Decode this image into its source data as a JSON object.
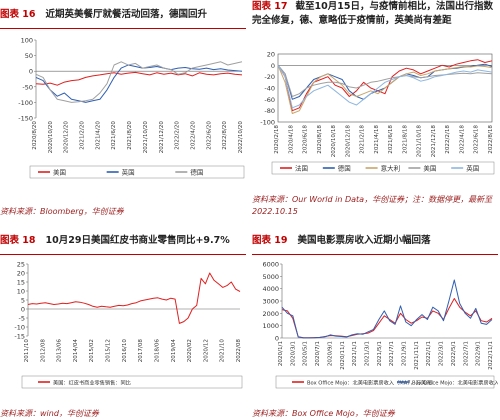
{
  "colors": {
    "accent": "#c00000",
    "source": "#9b1d1d"
  },
  "panels": [
    {
      "id": "p1",
      "num": "图表 16",
      "title": "近期英美餐厅就餐活动回落，德国回升",
      "source": "资料来源：Bloomberg，华创证券"
    },
    {
      "id": "p2",
      "num": "图表 17",
      "title": "截至10月15日，与疫情前相比，法国出行指数完全修复，德、意略低于疫情前，英美尚有差距",
      "source": "资料来源：Our World in Data，华创证券；注：数据停更，最新至2022.10.15"
    },
    {
      "id": "p3",
      "num": "图表 18",
      "title": "10月29日美国红皮书商业零售同比+9.7%",
      "source": "资料来源：wind，华创证券"
    },
    {
      "id": "p4",
      "num": "图表 19",
      "title": "美国电影票房收入近期小幅回落",
      "source": "资料来源：Box Office Mojo，华创证券"
    }
  ],
  "chart_data": [
    {
      "type": "line",
      "ylim": [
        -100,
        100
      ],
      "yticks": [
        "100",
        "50",
        "0",
        "-50",
        "-100",
        "-150"
      ],
      "x_ticks": [
        "2020/8/20",
        "2020/10/20",
        "2020/12/20",
        "2021/2/20",
        "2021/4/20",
        "2021/6/20",
        "2021/8/20",
        "2021/10/20",
        "2021/12/20",
        "2022/2/20",
        "2022/4/20",
        "2022/6/20",
        "2022/8/20",
        "2022/10/20"
      ],
      "series": [
        {
          "name": "美国",
          "color": "#e02020",
          "values": [
            -40,
            -42,
            -38,
            -45,
            -35,
            -30,
            -28,
            -20,
            -15,
            -12,
            -8,
            -5,
            -10,
            -6,
            -4,
            -8,
            -12,
            -5,
            -10,
            -6,
            -12,
            -8,
            -15,
            -5,
            -10,
            -12,
            -8,
            -6,
            -10,
            -12
          ]
        },
        {
          "name": "英国",
          "color": "#2f5fb3",
          "values": [
            -20,
            -30,
            -60,
            -80,
            -70,
            -90,
            -95,
            -100,
            -95,
            -90,
            -60,
            -20,
            10,
            20,
            15,
            10,
            12,
            15,
            10,
            5,
            10,
            12,
            8,
            6,
            10,
            5,
            8,
            4,
            2,
            0
          ]
        },
        {
          "name": "德国",
          "color": "#a0a0a0",
          "values": [
            -10,
            -20,
            -60,
            -90,
            -95,
            -100,
            -98,
            -95,
            -90,
            -70,
            -40,
            20,
            30,
            20,
            25,
            10,
            15,
            20,
            10,
            5,
            -10,
            -5,
            10,
            15,
            20,
            25,
            30,
            20,
            25,
            30
          ]
        }
      ]
    },
    {
      "type": "line",
      "ylim": [
        -100,
        20
      ],
      "yticks": [
        "20",
        "0",
        "-20",
        "-40",
        "-60",
        "-80",
        "-100"
      ],
      "x_ticks": [
        "2020/2/18",
        "2020/4/18",
        "2020/6/18",
        "2020/8/18",
        "2020/10/18",
        "2020/12/18",
        "2021/2/18",
        "2021/4/18",
        "2021/6/18",
        "2021/8/18",
        "2021/10/18",
        "2021/12/18",
        "2022/2/18",
        "2022/4/18",
        "2022/6/18",
        "2022/8/18"
      ],
      "series": [
        {
          "name": "法国",
          "color": "#e02020",
          "values": [
            0,
            -20,
            -80,
            -75,
            -50,
            -30,
            -25,
            -20,
            -35,
            -40,
            -55,
            -45,
            -30,
            -40,
            -45,
            -50,
            -20,
            -10,
            -5,
            -8,
            -15,
            -10,
            -5,
            0,
            -3,
            2,
            5,
            8,
            10,
            5,
            8
          ]
        },
        {
          "name": "德国",
          "color": "#2f5fb3",
          "values": [
            0,
            -15,
            -60,
            -55,
            -40,
            -25,
            -20,
            -15,
            -20,
            -25,
            -45,
            -55,
            -60,
            -50,
            -45,
            -40,
            -30,
            -20,
            -15,
            -18,
            -22,
            -20,
            -10,
            -8,
            -6,
            -5,
            -3,
            -2,
            0,
            2,
            -2
          ]
        },
        {
          "name": "意大利",
          "color": "#c9a56a",
          "values": [
            0,
            -30,
            -85,
            -80,
            -55,
            -30,
            -20,
            -15,
            -25,
            -35,
            -50,
            -55,
            -50,
            -45,
            -50,
            -40,
            -30,
            -20,
            -15,
            -12,
            -18,
            -15,
            -10,
            -8,
            -6,
            -4,
            -2,
            -3,
            -1,
            -2,
            -4
          ]
        },
        {
          "name": "美国",
          "color": "#a0a0a0",
          "values": [
            0,
            -15,
            -55,
            -50,
            -40,
            -35,
            -32,
            -30,
            -30,
            -32,
            -38,
            -40,
            -35,
            -30,
            -28,
            -25,
            -22,
            -20,
            -18,
            -20,
            -22,
            -20,
            -18,
            -17,
            -16,
            -15,
            -14,
            -15,
            -13,
            -14,
            -15
          ]
        },
        {
          "name": "英国",
          "color": "#8fb6e0",
          "values": [
            0,
            -20,
            -75,
            -70,
            -55,
            -45,
            -40,
            -35,
            -45,
            -55,
            -65,
            -70,
            -60,
            -50,
            -40,
            -30,
            -25,
            -20,
            -18,
            -22,
            -28,
            -25,
            -20,
            -18,
            -15,
            -12,
            -10,
            -12,
            -8,
            -10,
            -12
          ]
        }
      ]
    },
    {
      "type": "line",
      "ylim": [
        -15,
        25
      ],
      "yticks": [
        "25",
        "20",
        "15",
        "10",
        "5",
        "0",
        "-5",
        "-10",
        "-15"
      ],
      "x_ticks": [
        "2011/10",
        "2012/08",
        "2013/06",
        "2014/04",
        "2015/02",
        "2015/12",
        "2016/10",
        "2017/08",
        "2018/06",
        "2019/04",
        "2020/02",
        "2020/12",
        "2021/10",
        "2022/08"
      ],
      "series": [
        {
          "name": "美国：红皮书商业零售销售：同比",
          "color": "#e02020",
          "values": [
            2.5,
            3,
            2.8,
            3.2,
            3.5,
            3,
            2.5,
            2.8,
            3.2,
            3,
            3.5,
            4,
            3.8,
            3.2,
            2.5,
            1.5,
            1,
            1.5,
            1.2,
            1,
            1.5,
            2,
            1.8,
            2.2,
            3,
            3.5,
            4.5,
            5,
            5.5,
            6,
            6.2,
            5.5,
            5,
            6,
            5.5,
            -8,
            -7,
            -5,
            0,
            2,
            17,
            14,
            20,
            16,
            14,
            12,
            13,
            15,
            11,
            9.7
          ]
        }
      ]
    },
    {
      "type": "line",
      "ylim": [
        0,
        6000
      ],
      "yticks": [
        "6000",
        "5000",
        "4000",
        "3000",
        "2000",
        "1000",
        "0"
      ],
      "x_ticks": [
        "2020/1/1",
        "2020/3/1",
        "2020/5/1",
        "2020/7/1",
        "2020/9/1",
        "2020/11/1",
        "2021/1/1",
        "2021/3/1",
        "2021/5/1",
        "2021/7/1",
        "2021/9/1",
        "2021/11/1",
        "2022/1/1",
        "2022/3/1",
        "2022/5/1",
        "2022/7/1",
        "2022/9/1",
        "2022/11/1"
      ],
      "series": [
        {
          "name": "Box Office Mojo：北美电影票房收入（MA7，万美元）",
          "color": "#e02020",
          "values": [
            2300,
            2200,
            1600,
            100,
            20,
            20,
            30,
            50,
            120,
            200,
            180,
            150,
            100,
            200,
            300,
            350,
            400,
            600,
            1200,
            1800,
            1500,
            1200,
            2000,
            1500,
            1200,
            1400,
            1700,
            1600,
            2200,
            2000,
            1500,
            2400,
            3200,
            2500,
            2100,
            1800,
            2200,
            1400,
            1300,
            1600
          ]
        },
        {
          "name": "Box Office Mojo：北美电影票房收入",
          "color": "#2f5fb3",
          "values": [
            2500,
            2000,
            1800,
            80,
            10,
            10,
            20,
            40,
            100,
            250,
            150,
            120,
            80,
            250,
            350,
            300,
            500,
            700,
            1500,
            2200,
            1400,
            1100,
            2600,
            1300,
            1000,
            1500,
            1900,
            1500,
            2500,
            2200,
            1400,
            3000,
            4700,
            2800,
            2000,
            1600,
            2400,
            1200,
            1100,
            1500
          ]
        }
      ]
    }
  ]
}
